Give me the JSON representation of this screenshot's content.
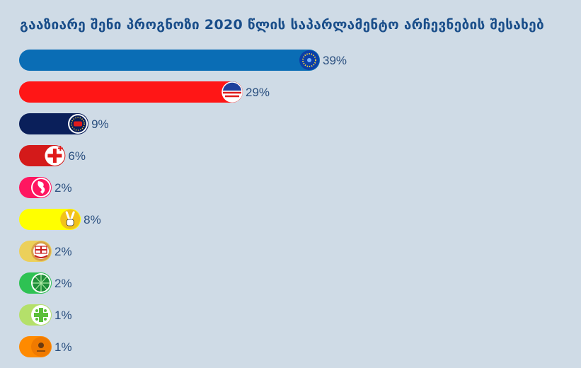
{
  "chart_data": {
    "type": "bar",
    "orientation": "horizontal",
    "title": "გააზიარე შენი პროგნოზი 2020 წლის საპარლამენტო არჩევნების შესახებ",
    "xlim": [
      0,
      100
    ],
    "grid": false,
    "legend": "none",
    "bars": [
      {
        "value": 39,
        "label": "39%",
        "color": "#0a6db5",
        "icon": "blue-dotted-circle-logo-icon"
      },
      {
        "value": 29,
        "label": "29%",
        "color": "#ff1616",
        "icon": "red-white-blue-wave-logo-icon"
      },
      {
        "value": 9,
        "label": "9%",
        "color": "#0a1f5a",
        "icon": "navy-star-ring-logo-icon"
      },
      {
        "value": 6,
        "label": "6%",
        "color": "#d41a1a",
        "icon": "red-cross-logo-icon"
      },
      {
        "value": 2,
        "label": "2%",
        "color": "#ff1660",
        "icon": "pink-silhouette-logo-icon"
      },
      {
        "value": 8,
        "label": "8%",
        "color": "#ffff00",
        "icon": "victory-hand-logo-icon"
      },
      {
        "value": 2,
        "label": "2%",
        "color": "#ecd05a",
        "icon": "flag-emblem-logo-icon"
      },
      {
        "value": 2,
        "label": "2%",
        "color": "#2ec253",
        "icon": "green-globe-logo-icon"
      },
      {
        "value": 1,
        "label": "1%",
        "color": "#b4e06a",
        "icon": "green-cross-logo-icon"
      },
      {
        "value": 1,
        "label": "1%",
        "color": "#ff8a00",
        "icon": "orange-emblem-logo-icon"
      }
    ]
  }
}
